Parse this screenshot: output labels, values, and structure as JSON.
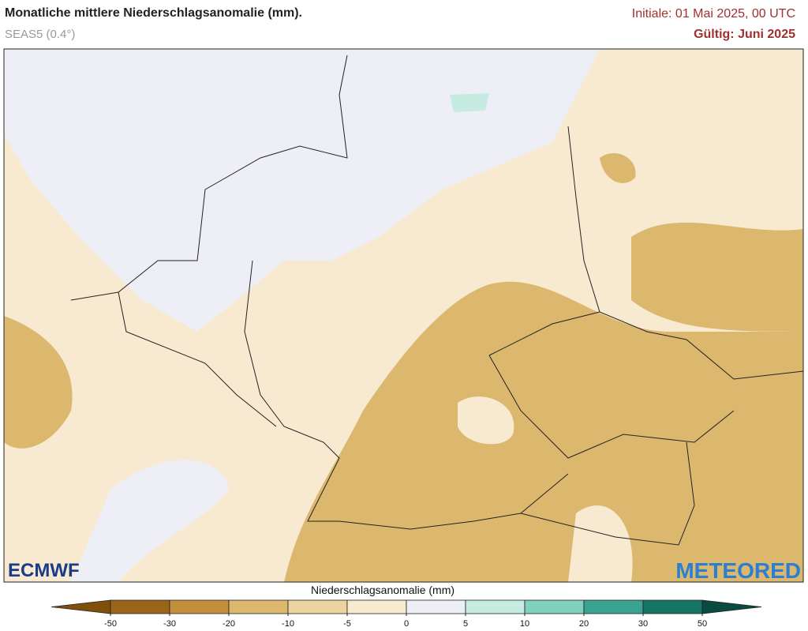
{
  "header": {
    "title": "Monatliche mittlere Niederschlagsanomalie (mm).",
    "subtitle": "SEAS5 (0.4°)",
    "initial": "Initiale: 01 Mai 2025, 00 UTC",
    "valid": "Gültig: Juni 2025"
  },
  "logos": {
    "left": "ECMWF",
    "right": "METEORED"
  },
  "colorbar": {
    "label": "Niederschlagsanomalie (mm)",
    "ticks": [
      -50,
      -30,
      -20,
      -10,
      -5,
      0,
      5,
      10,
      20,
      30,
      50
    ],
    "colors": [
      "#7f4f0c",
      "#9a6519",
      "#c48f3c",
      "#dcb76e",
      "#ecd49e",
      "#f7ead0",
      "#eeeef6",
      "#c6ece2",
      "#7fd0bd",
      "#3aa290",
      "#157564",
      "#0a4a40"
    ]
  }
}
